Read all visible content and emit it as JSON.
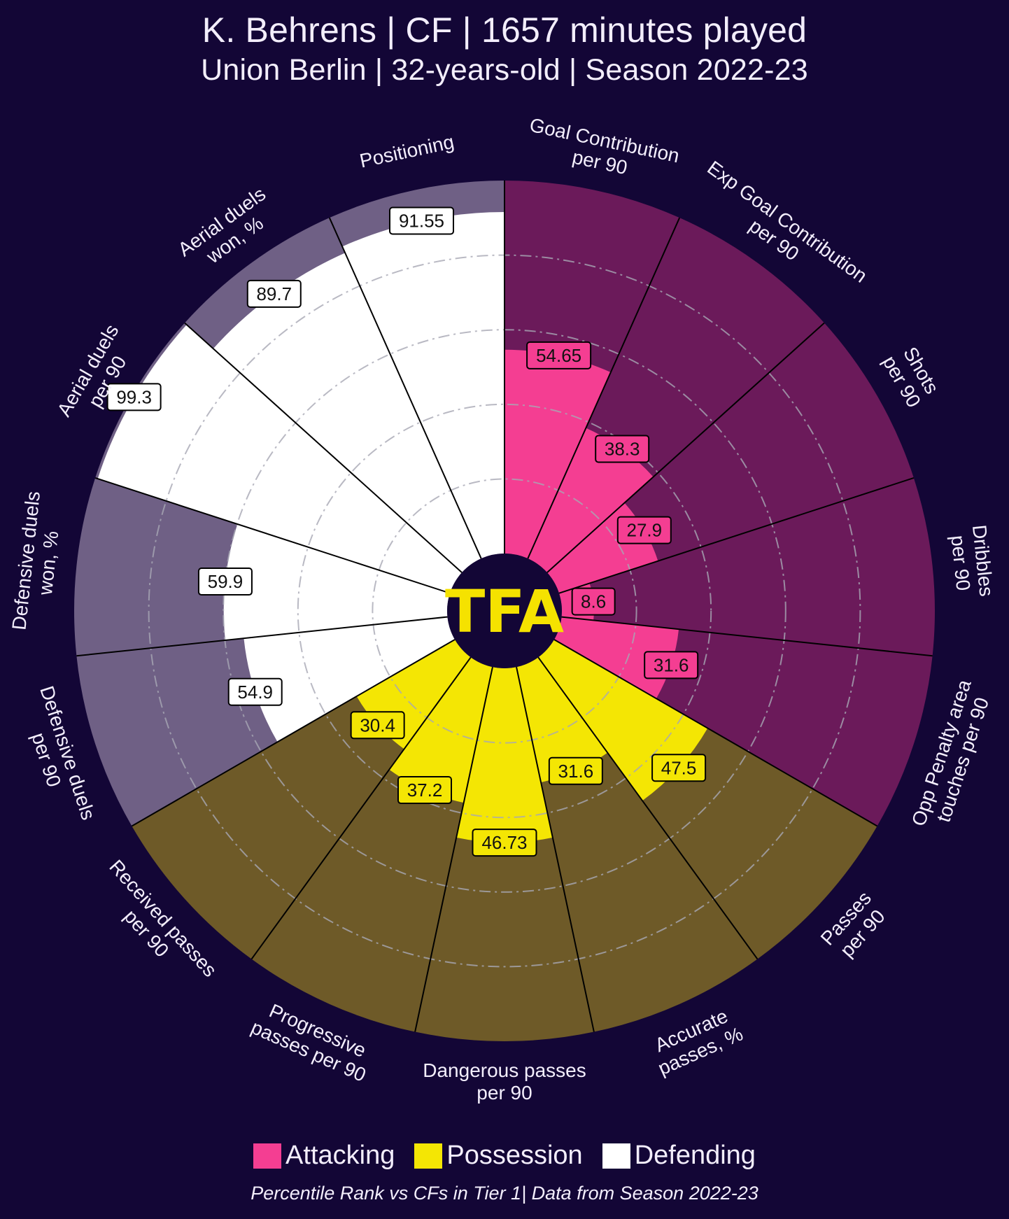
{
  "header": {
    "title": "K. Behrens | CF | 1657 minutes played",
    "subtitle": "Union Berlin | 32-years-old | Season 2022-23"
  },
  "logo": {
    "text": "TFA",
    "color": "#f5e200"
  },
  "legend": [
    {
      "label": "Attacking",
      "color": "#f43e92"
    },
    {
      "label": "Possession",
      "color": "#f4e604"
    },
    {
      "label": "Defending",
      "color": "#ffffff"
    }
  ],
  "footnote": "Percentile Rank vs CFs in Tier 1| Data from Season 2022-23",
  "chart_data": {
    "type": "pie",
    "subtype": "pizza",
    "range": [
      0,
      100
    ],
    "gridlines": [
      20,
      40,
      60,
      80
    ],
    "groups": {
      "Attacking": {
        "fill": "#f43e92",
        "background": "#6b1a5a"
      },
      "Possession": {
        "fill": "#f4e604",
        "background": "#6e5a28"
      },
      "Defending": {
        "fill": "#ffffff",
        "background": "#6f6085"
      }
    },
    "slices": [
      {
        "label": "Goal Contribution\nper 90",
        "value": 54.65,
        "value_label": "54.65",
        "group": "Attacking"
      },
      {
        "label": "Exp Goal Contribution\nper 90",
        "value": 38.3,
        "value_label": "38.3",
        "group": "Attacking"
      },
      {
        "label": "Shots\nper 90",
        "value": 27.9,
        "value_label": "27.9",
        "group": "Attacking"
      },
      {
        "label": "Dribbles\nper 90",
        "value": 8.6,
        "value_label": "8.6",
        "group": "Attacking"
      },
      {
        "label": "Opp Penalty area\ntouches per 90",
        "value": 31.6,
        "value_label": "31.6",
        "group": "Attacking"
      },
      {
        "label": "Passes\nper 90",
        "value": 47.5,
        "value_label": "47.5",
        "group": "Possession"
      },
      {
        "label": "Accurate\npasses, %",
        "value": 31.6,
        "value_label": "31.6",
        "group": "Possession"
      },
      {
        "label": "Dangerous passes\nper 90",
        "value": 46.73,
        "value_label": "46.73",
        "group": "Possession"
      },
      {
        "label": "Progressive\npasses per 90",
        "value": 37.2,
        "value_label": "37.2",
        "group": "Possession"
      },
      {
        "label": "Received passes\nper 90",
        "value": 30.4,
        "value_label": "30.4",
        "group": "Possession"
      },
      {
        "label": "Defensive duels\nper 90",
        "value": 54.9,
        "value_label": "54.9",
        "group": "Defending"
      },
      {
        "label": "Defensive duels\nwon, %",
        "value": 59.9,
        "value_label": "59.9",
        "group": "Defending"
      },
      {
        "label": "Aerial duels\nper 90",
        "value": 99.3,
        "value_label": "99.3",
        "group": "Defending"
      },
      {
        "label": "Aerial duels\nwon, %",
        "value": 89.7,
        "value_label": "89.7",
        "group": "Defending"
      },
      {
        "label": "Positioning",
        "value": 91.55,
        "value_label": "91.55",
        "group": "Defending"
      }
    ]
  }
}
